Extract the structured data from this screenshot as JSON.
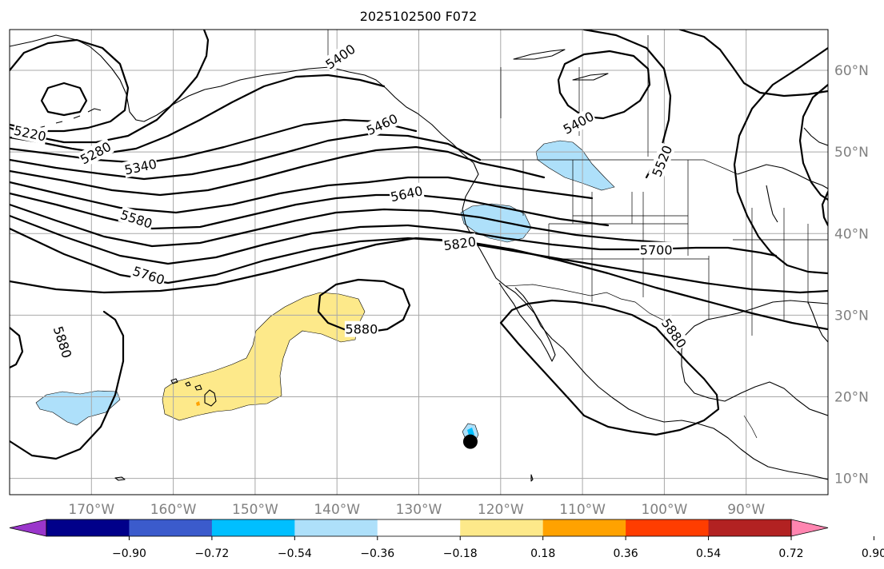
{
  "map": {
    "title": "2025102500 F072",
    "projection": "PlateCarree",
    "extent_lon": [
      -180,
      -80
    ],
    "extent_lat": [
      8,
      65
    ],
    "gridlines": true,
    "lon_ticks": [
      -170,
      -160,
      -150,
      -140,
      -130,
      -120,
      -110,
      -100,
      -90
    ],
    "lat_ticks": [
      10,
      20,
      30,
      40,
      50,
      60
    ],
    "lon_labels": [
      "170°W",
      "160°W",
      "150°W",
      "140°W",
      "130°W",
      "120°W",
      "110°W",
      "100°W",
      "90°W"
    ],
    "lat_labels": [
      "10°N",
      "20°N",
      "30°N",
      "40°N",
      "50°N",
      "60°N"
    ],
    "colors": {
      "coast": "#000000",
      "contour": "#000000",
      "grid": "#a8a8a8",
      "light_blue": "#aee0fa",
      "cyan": "#00bfff",
      "yellow": "#fde98a",
      "orange": "#ffa200"
    },
    "contour_labels": [
      {
        "text": "5220",
        "lon": -177.5,
        "lat": 52.3,
        "rot": 12
      },
      {
        "text": "5280",
        "lon": -169.5,
        "lat": 49.9,
        "rot": -28
      },
      {
        "text": "5340",
        "lon": -164.0,
        "lat": 48.2,
        "rot": -12
      },
      {
        "text": "5400",
        "lon": -139.6,
        "lat": 61.7,
        "rot": -35
      },
      {
        "text": "5460",
        "lon": -134.5,
        "lat": 53.4,
        "rot": -25
      },
      {
        "text": "5640",
        "lon": -131.5,
        "lat": 44.9,
        "rot": -12
      },
      {
        "text": "5580",
        "lon": -164.5,
        "lat": 41.8,
        "rot": 18
      },
      {
        "text": "5760",
        "lon": -163.0,
        "lat": 34.9,
        "rot": 18
      },
      {
        "text": "5820",
        "lon": -125.0,
        "lat": 38.8,
        "rot": -8
      },
      {
        "text": "5880",
        "lon": -173.5,
        "lat": 26.7,
        "rot": 72
      },
      {
        "text": "5880",
        "lon": -137.0,
        "lat": 28.3,
        "rot": 0
      },
      {
        "text": "5700",
        "lon": -101.0,
        "lat": 38.0,
        "rot": 0
      },
      {
        "text": "5400",
        "lon": -110.5,
        "lat": 53.6,
        "rot": -28
      },
      {
        "text": "5520",
        "lon": -100.3,
        "lat": 48.9,
        "rot": -68
      },
      {
        "text": "5880",
        "lon": -98.8,
        "lat": 27.8,
        "rot": 55
      }
    ],
    "marker": {
      "lon": -123.7,
      "lat": 14.5
    }
  },
  "colorbar": {
    "levels": [
      "−0.90",
      "−0.72",
      "−0.54",
      "−0.36",
      "−0.18",
      "0.18",
      "0.36",
      "0.54",
      "0.72",
      "0.90"
    ],
    "colors": [
      "#9a36cb",
      "#01008a",
      "#3b5bcc",
      "#00bfff",
      "#aee0fa",
      "#ffffff",
      "#fde98a",
      "#ffa200",
      "#ff3d00",
      "#b22222",
      "#ff85b0"
    ]
  }
}
